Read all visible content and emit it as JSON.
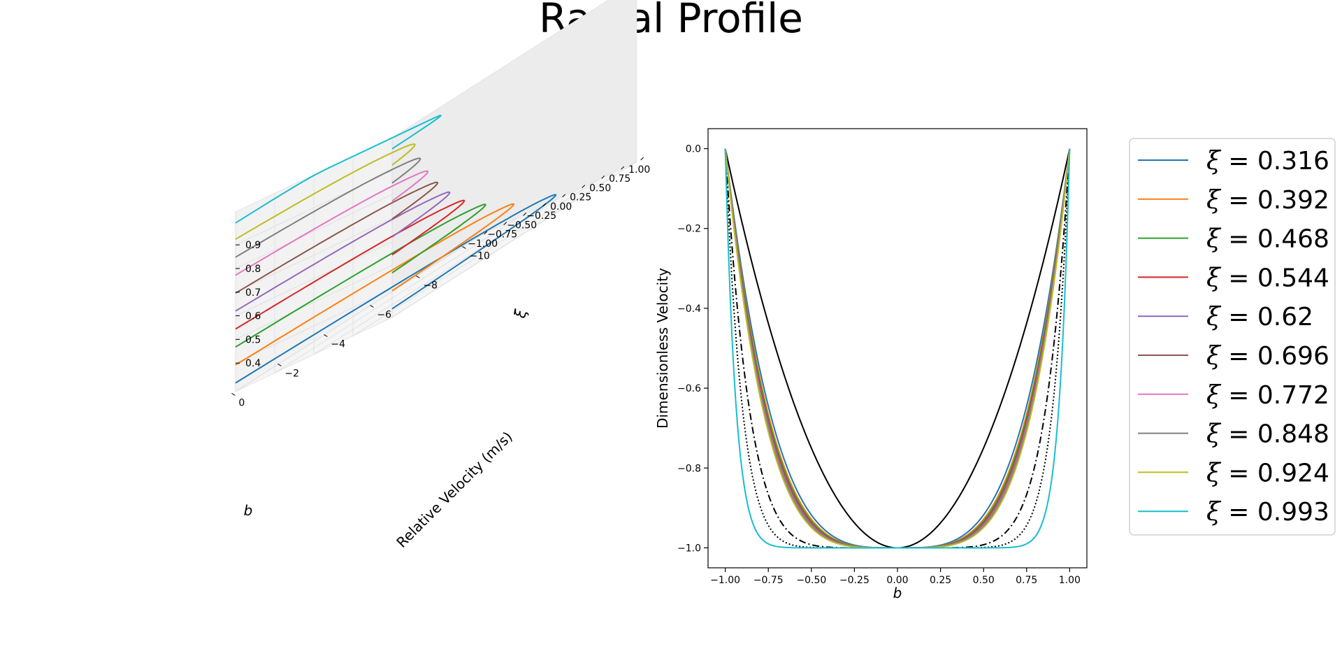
{
  "page": {
    "title": "Radial Profile"
  },
  "colors": [
    "#1f77b4",
    "#ff7f0e",
    "#2ca02c",
    "#d62728",
    "#9467bd",
    "#8c564b",
    "#e377c2",
    "#7f7f7f",
    "#bcbd22",
    "#17becf"
  ],
  "chart_data": [
    {
      "type": "line3d",
      "title": "",
      "xlabel": "b",
      "ylabel": "Relative Velocity (m/s)",
      "zlabel": "ξ",
      "xticks": [
        "1.00",
        "0.75",
        "0.50",
        "0.25",
        "0.00",
        "−0.25",
        "−0.50",
        "−0.75",
        "−1.00"
      ],
      "yticks": [
        "0",
        "−2",
        "−4",
        "−6",
        "−8",
        "−10"
      ],
      "zticks": [
        "0.4",
        "0.5",
        "0.6",
        "0.7",
        "0.8",
        "0.9"
      ],
      "xlim": [
        -1,
        1
      ],
      "ylim": [
        -10,
        0
      ],
      "zlim": [
        0.316,
        0.993
      ],
      "series": [
        {
          "xi": 0.316,
          "min_velocity": -10.0
        },
        {
          "xi": 0.392,
          "min_velocity": -8.1
        },
        {
          "xi": 0.468,
          "min_velocity": -6.8
        },
        {
          "xi": 0.544,
          "min_velocity": -5.8
        },
        {
          "xi": 0.62,
          "min_velocity": -5.1
        },
        {
          "xi": 0.696,
          "min_velocity": -4.5
        },
        {
          "xi": 0.772,
          "min_velocity": -4.0
        },
        {
          "xi": 0.848,
          "min_velocity": -3.6
        },
        {
          "xi": 0.924,
          "min_velocity": -3.3
        },
        {
          "xi": 0.993,
          "min_velocity": -2.9
        }
      ]
    },
    {
      "type": "line",
      "title": "",
      "xlabel": "b",
      "ylabel": "Dimensionless Velocity",
      "xlim": [
        -1.1,
        1.1
      ],
      "ylim": [
        -1.05,
        0.05
      ],
      "xticks": [
        -1.0,
        -0.75,
        -0.5,
        -0.25,
        0.0,
        0.25,
        0.5,
        0.75,
        1.0
      ],
      "xtick_labels": [
        "−1.00",
        "−0.75",
        "−0.50",
        "−0.25",
        "0.00",
        "0.25",
        "0.50",
        "0.75",
        "1.00"
      ],
      "yticks": [
        0.0,
        -0.2,
        -0.4,
        -0.6,
        -0.8,
        -1.0
      ],
      "ytick_labels": [
        "0.0",
        "−0.2",
        "−0.4",
        "−0.6",
        "−0.8",
        "−1.0"
      ],
      "legend_position": "outside-right",
      "series": [
        {
          "name": "ξ = 0.316",
          "label_value": "0.316",
          "exponent": 3.6
        },
        {
          "name": "ξ = 0.392",
          "label_value": "0.392",
          "exponent": 3.8
        },
        {
          "name": "ξ = 0.468",
          "label_value": "0.468",
          "exponent": 3.9
        },
        {
          "name": "ξ = 0.544",
          "label_value": "0.544",
          "exponent": 4.0
        },
        {
          "name": "ξ = 0.62",
          "label_value": "0.62",
          "exponent": 4.05
        },
        {
          "name": "ξ = 0.696",
          "label_value": "0.696",
          "exponent": 4.1
        },
        {
          "name": "ξ = 0.772",
          "label_value": "0.772",
          "exponent": 4.15
        },
        {
          "name": "ξ = 0.848",
          "label_value": "0.848",
          "exponent": 4.2
        },
        {
          "name": "ξ = 0.924",
          "label_value": "0.924",
          "exponent": 4.3
        },
        {
          "name": "ξ = 0.993",
          "label_value": "0.993",
          "exponent": 16
        }
      ],
      "reference_curves": [
        {
          "style": "solid",
          "exponent": 2
        },
        {
          "style": "dashed",
          "exponent": 4
        },
        {
          "style": "dashdot",
          "exponent": 7
        },
        {
          "style": "dotted",
          "exponent": 10
        }
      ]
    }
  ]
}
